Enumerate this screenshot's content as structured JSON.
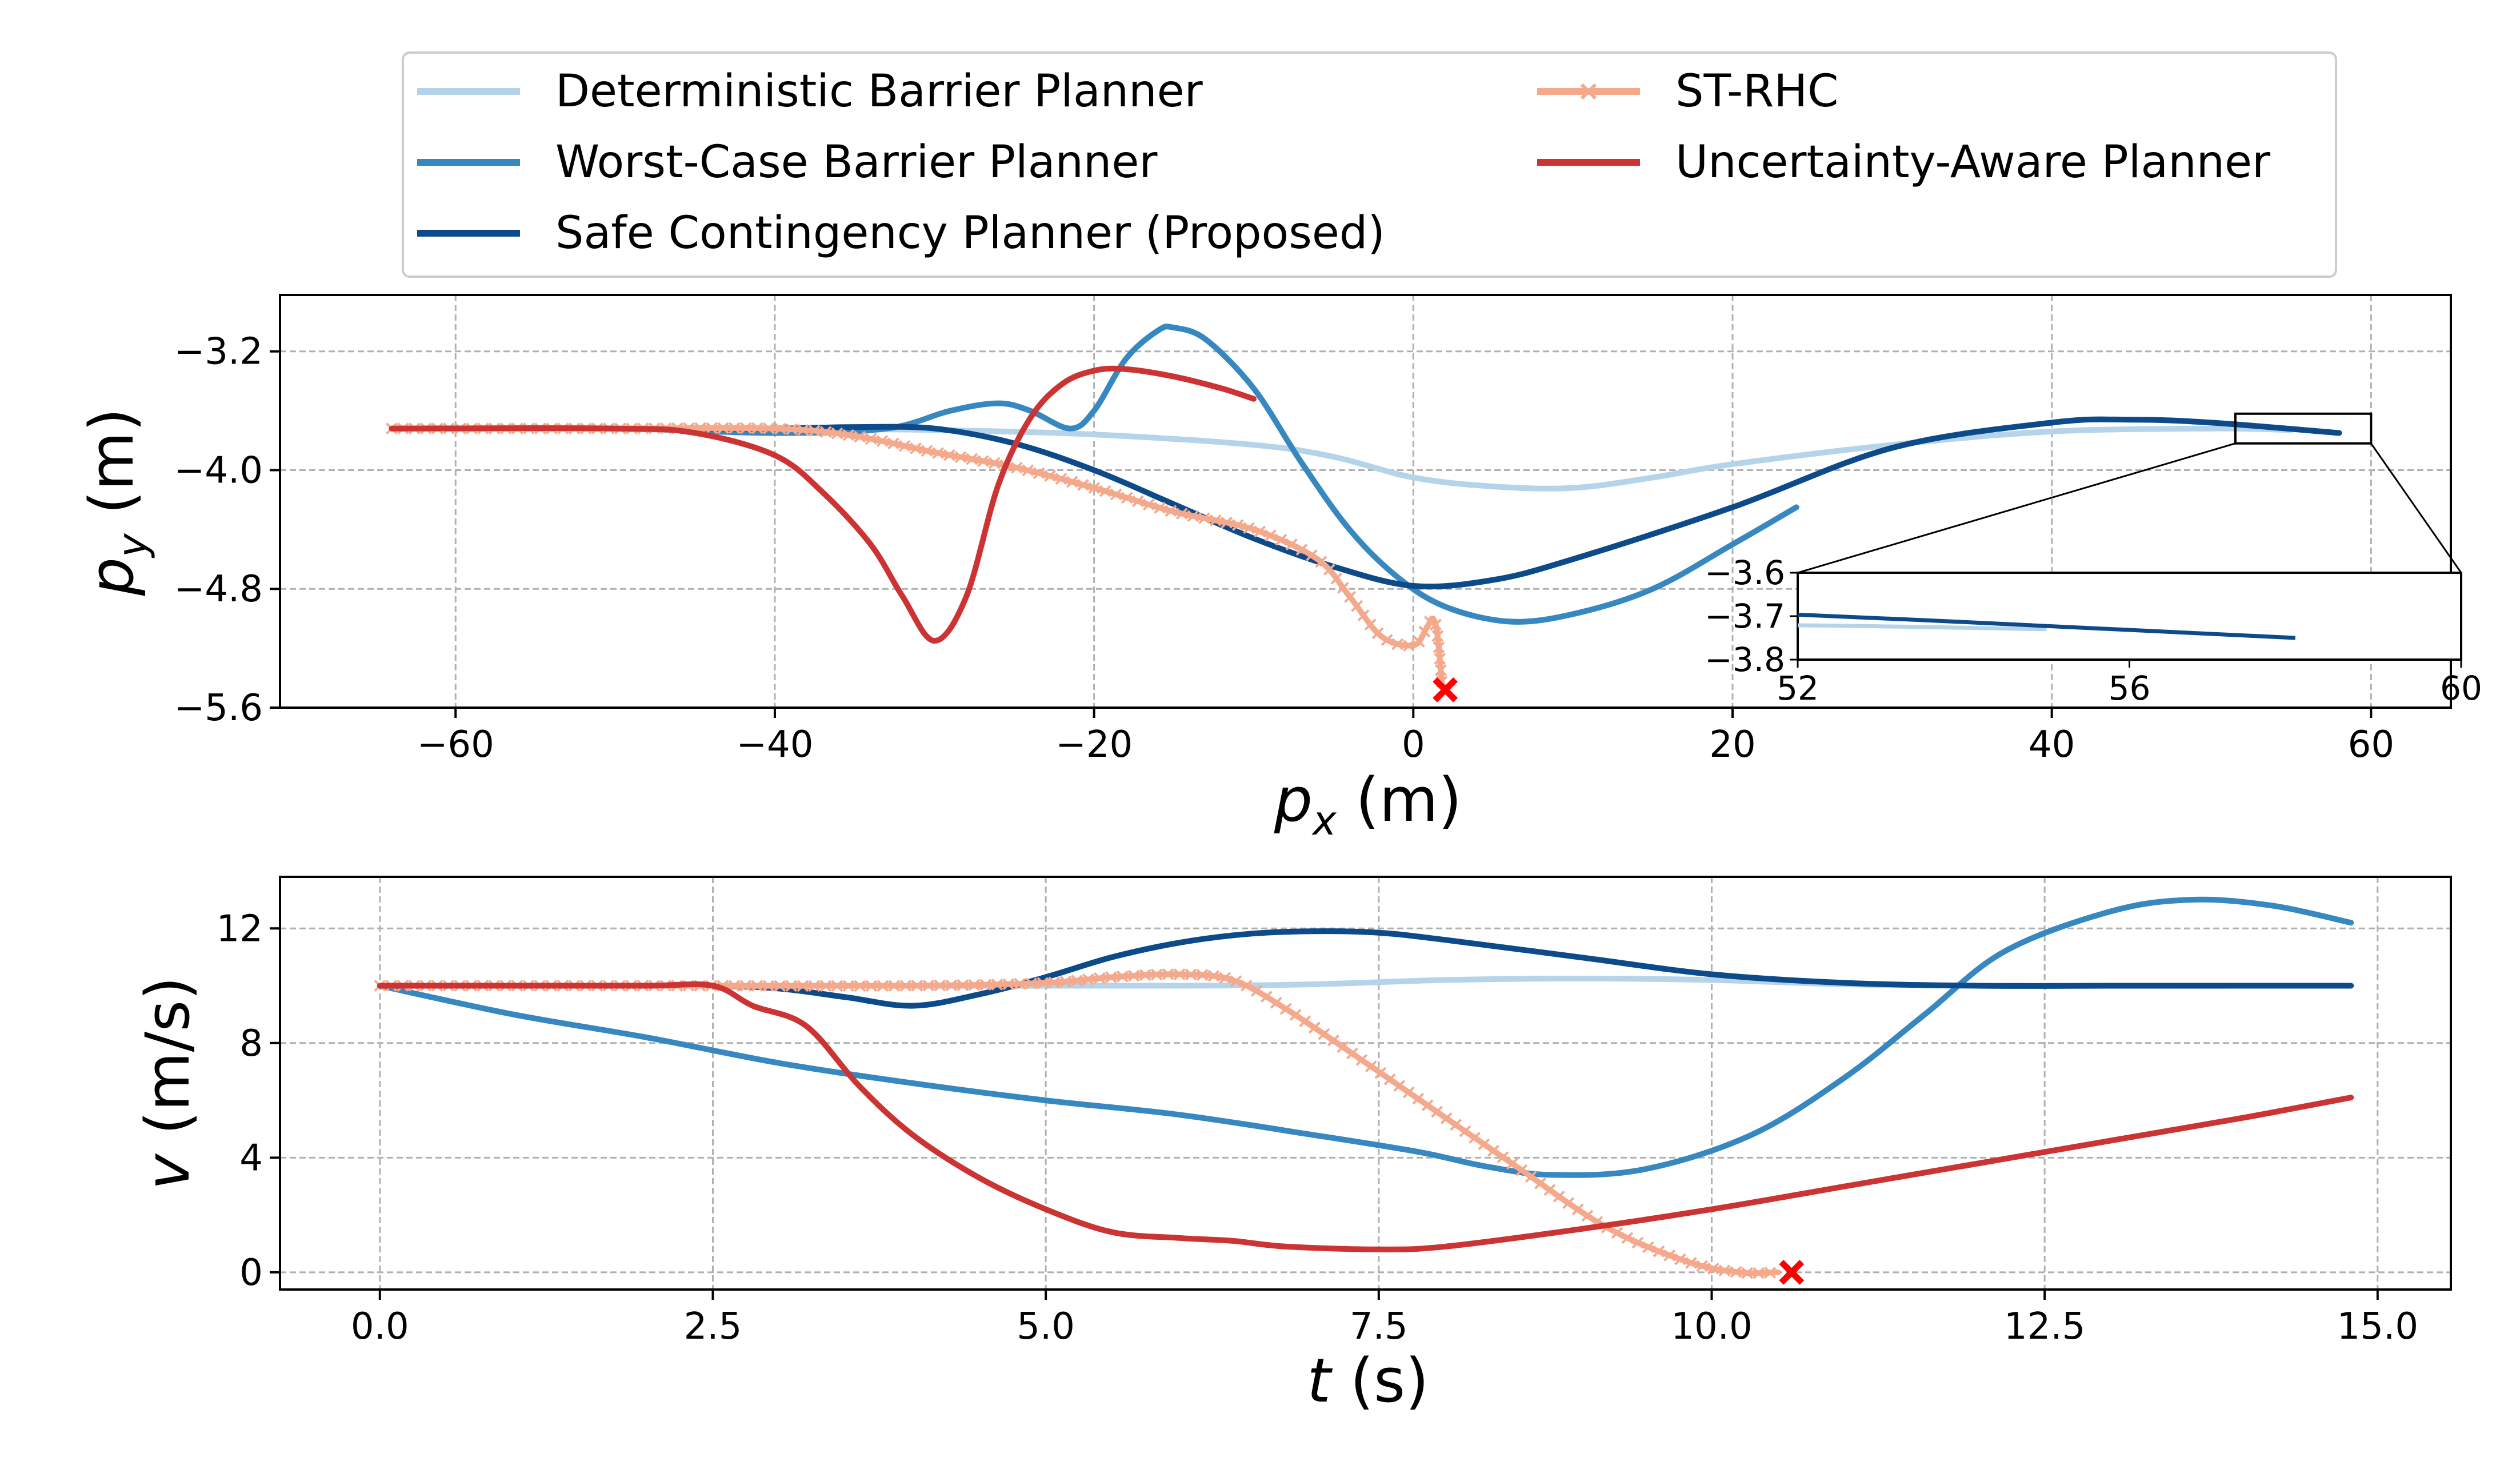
{
  "chart_data": [
    {
      "type": "line",
      "xlabel_main": "p",
      "xlabel_sub": "x",
      "xlabel_unit": " (m)",
      "ylabel_main": "p",
      "ylabel_sub": "y",
      "ylabel_unit": " (m)",
      "xlim": [
        -71,
        65
      ],
      "ylim": [
        -5.6,
        -2.82
      ],
      "xticks": [
        -60,
        -40,
        -20,
        0,
        20,
        40,
        60
      ],
      "xtick_labels": [
        "−60",
        "−40",
        "−20",
        "0",
        "20",
        "40",
        "60"
      ],
      "yticks": [
        -3.2,
        -4.0,
        -4.8,
        -5.6
      ],
      "ytick_labels": [
        "−3.2",
        "−4.0",
        "−4.8",
        "−5.6"
      ],
      "grid": true,
      "series": [
        {
          "name": "Deterministic Barrier Planner",
          "color": "#b5d4e9",
          "x": [
            -64,
            -50,
            -40,
            -30,
            -20,
            -10,
            -5,
            0,
            5,
            10,
            15,
            20,
            30,
            40,
            50,
            55
          ],
          "y": [
            -3.72,
            -3.72,
            -3.72,
            -3.73,
            -3.76,
            -3.83,
            -3.91,
            -4.05,
            -4.11,
            -4.12,
            -4.05,
            -3.96,
            -3.83,
            -3.74,
            -3.72,
            -3.73
          ]
        },
        {
          "name": "Worst-Case Barrier Planner",
          "color": "#3787c0",
          "x": [
            -64,
            -50,
            -40,
            -33,
            -29,
            -26,
            -24,
            -21.5,
            -20,
            -18,
            -16,
            -15,
            -13,
            -10,
            -7,
            -4,
            -1,
            2,
            6,
            10,
            15,
            20,
            24
          ],
          "y": [
            -3.72,
            -3.72,
            -3.75,
            -3.72,
            -3.6,
            -3.55,
            -3.6,
            -3.72,
            -3.6,
            -3.25,
            -3.06,
            -3.04,
            -3.12,
            -3.45,
            -3.95,
            -4.4,
            -4.72,
            -4.92,
            -5.02,
            -4.97,
            -4.8,
            -4.5,
            -4.25
          ]
        },
        {
          "name": "Safe Contingency Planner (Proposed)",
          "color": "#0c4a8a",
          "x": [
            -64,
            -50,
            -40,
            -35,
            -30,
            -25,
            -20,
            -15,
            -10,
            -5,
            0,
            5,
            10,
            20,
            30,
            40,
            45,
            50,
            58
          ],
          "y": [
            -3.72,
            -3.72,
            -3.72,
            -3.71,
            -3.72,
            -3.82,
            -4.0,
            -4.23,
            -4.46,
            -4.65,
            -4.78,
            -4.74,
            -4.6,
            -4.25,
            -3.85,
            -3.68,
            -3.66,
            -3.68,
            -3.75
          ]
        },
        {
          "name": "ST-RHC",
          "color": "#f4a98d",
          "marker": "x",
          "x": [
            -64,
            -50,
            -40,
            -35,
            -30,
            -25,
            -20,
            -15,
            -10,
            -6,
            -4,
            -2,
            0,
            0.8,
            1.2,
            1.5,
            1.8
          ],
          "y": [
            -3.72,
            -3.72,
            -3.72,
            -3.77,
            -3.88,
            -3.98,
            -4.12,
            -4.28,
            -4.4,
            -4.6,
            -4.85,
            -5.12,
            -5.18,
            -5.07,
            -5.0,
            -5.1,
            -5.45
          ]
        },
        {
          "name": "Uncertainty-Aware Planner",
          "color": "#cc3333",
          "x": [
            -64,
            -50,
            -45,
            -40,
            -37,
            -34,
            -32,
            -30,
            -28,
            -26,
            -24,
            -22,
            -20,
            -18,
            -15,
            -12,
            -10
          ],
          "y": [
            -3.72,
            -3.72,
            -3.75,
            -3.9,
            -4.15,
            -4.5,
            -4.85,
            -5.15,
            -4.85,
            -4.1,
            -3.65,
            -3.42,
            -3.33,
            -3.32,
            -3.37,
            -3.45,
            -3.52
          ]
        }
      ],
      "crash_marker": {
        "x": 2.0,
        "y": -5.48,
        "color": "#ff0000"
      },
      "inset": {
        "xlim": [
          52,
          60
        ],
        "ylim": [
          -3.8,
          -3.6
        ],
        "xticks": [
          52,
          56,
          60
        ],
        "xtick_labels": [
          "52",
          "56",
          "60"
        ],
        "yticks": [
          -3.6,
          -3.7,
          -3.8
        ],
        "ytick_labels": [
          "−3.6",
          "−3.7",
          "−3.8"
        ],
        "source_box": {
          "x": [
            51.5,
            60
          ],
          "y": [
            -3.82,
            -3.62
          ]
        }
      }
    },
    {
      "type": "line",
      "xlabel_main": "t",
      "xlabel_unit": " (s)",
      "ylabel_main": "v",
      "ylabel_unit": " (m/s)",
      "xlim": [
        -0.75,
        15.55
      ],
      "ylim": [
        -0.6,
        13.8
      ],
      "xticks": [
        0.0,
        2.5,
        5.0,
        7.5,
        10.0,
        12.5,
        15.0
      ],
      "xtick_labels": [
        "0.0",
        "2.5",
        "5.0",
        "7.5",
        "10.0",
        "12.5",
        "15.0"
      ],
      "yticks": [
        0,
        4,
        8,
        12
      ],
      "ytick_labels": [
        "0",
        "4",
        "8",
        "12"
      ],
      "grid": true,
      "series": [
        {
          "name": "Deterministic Barrier Planner",
          "color": "#b5d4e9",
          "x": [
            0,
            2,
            4,
            6,
            7,
            8,
            9,
            10,
            11,
            12,
            14,
            14.8
          ],
          "y": [
            10,
            10,
            10,
            10,
            10.05,
            10.2,
            10.25,
            10.2,
            10.05,
            10,
            10,
            10
          ]
        },
        {
          "name": "Worst-Case Barrier Planner",
          "color": "#3787c0",
          "x": [
            0,
            1,
            2,
            3,
            4,
            5,
            6,
            7,
            7.8,
            8.3,
            8.8,
            9.5,
            10.3,
            11,
            11.6,
            12.2,
            13,
            13.6,
            14.2,
            14.8
          ],
          "y": [
            10,
            9.0,
            8.2,
            7.3,
            6.6,
            6.0,
            5.5,
            4.8,
            4.2,
            3.7,
            3.4,
            3.6,
            4.8,
            6.8,
            9.0,
            11.2,
            12.6,
            13.0,
            12.8,
            12.2
          ]
        },
        {
          "name": "Safe Contingency Planner (Proposed)",
          "color": "#0c4a8a",
          "x": [
            0,
            1,
            2,
            2.5,
            3,
            3.5,
            4,
            4.5,
            5,
            5.5,
            6,
            6.5,
            7,
            7.5,
            8,
            9,
            10,
            11,
            12,
            13,
            14,
            14.8
          ],
          "y": [
            10,
            10,
            10,
            10,
            9.9,
            9.6,
            9.3,
            9.7,
            10.3,
            11.0,
            11.5,
            11.8,
            11.9,
            11.85,
            11.6,
            11.0,
            10.4,
            10.1,
            10,
            10,
            10,
            10
          ]
        },
        {
          "name": "ST-RHC",
          "color": "#f4a98d",
          "marker": "x",
          "x": [
            0,
            2,
            4,
            5,
            5.5,
            6,
            6.4,
            6.8,
            7.5,
            8.5,
            9.2,
            9.8,
            10.2,
            10.5
          ],
          "y": [
            10,
            10,
            10,
            10.1,
            10.3,
            10.4,
            10.2,
            9.2,
            7.0,
            3.8,
            1.6,
            0.4,
            0.0,
            0.0
          ]
        },
        {
          "name": "Uncertainty-Aware Planner",
          "color": "#cc3333",
          "x": [
            0,
            1,
            2,
            2.5,
            2.8,
            3.2,
            3.6,
            4,
            4.5,
            5,
            5.5,
            6,
            6.4,
            6.8,
            7.5,
            8,
            9,
            10,
            11,
            12,
            13,
            14,
            14.8
          ],
          "y": [
            10,
            10,
            10,
            10,
            9.3,
            8.6,
            6.5,
            4.8,
            3.3,
            2.2,
            1.4,
            1.2,
            1.1,
            0.9,
            0.8,
            0.9,
            1.5,
            2.2,
            3.0,
            3.8,
            4.6,
            5.4,
            6.1
          ]
        }
      ],
      "crash_marker": {
        "x": 10.6,
        "y": 0.0,
        "color": "#ff0000"
      }
    }
  ],
  "legend": {
    "entries": [
      {
        "label": "Deterministic Barrier Planner",
        "color": "#b5d4e9"
      },
      {
        "label": "Worst-Case Barrier Planner",
        "color": "#3787c0"
      },
      {
        "label": "Safe Contingency Planner (Proposed)",
        "color": "#0c4a8a"
      },
      {
        "label": "ST-RHC",
        "color": "#f4a98d",
        "marker": "x"
      },
      {
        "label": "Uncertainty-Aware Planner",
        "color": "#cc3333"
      }
    ]
  }
}
